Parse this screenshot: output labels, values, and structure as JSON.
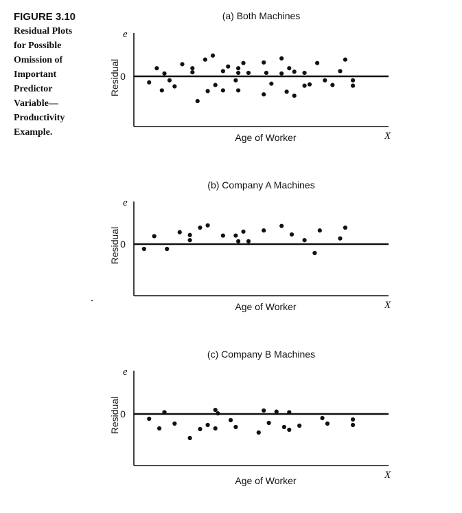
{
  "figure": {
    "label": "FIGURE 3.10",
    "caption": "Residual Plots\nfor Possible\nOmission of\nImportant\nPredictor\nVariable—\nProductivity\nExample."
  },
  "chart_data": [
    {
      "type": "scatter",
      "title": "(a) Both Machines",
      "xlabel": "Age of Worker",
      "ylabel": "Residual",
      "y_axis_symbol": "e",
      "x_axis_symbol": "X",
      "ytick_label": "0",
      "xlim": [
        0,
        100
      ],
      "ylim": [
        -1.5,
        1.5
      ],
      "points": [
        [
          6,
          -0.18
        ],
        [
          9,
          0.28
        ],
        [
          11,
          -0.42
        ],
        [
          12,
          0.1
        ],
        [
          14,
          -0.12
        ],
        [
          16,
          -0.3
        ],
        [
          19,
          0.42
        ],
        [
          23,
          0.28
        ],
        [
          23,
          0.14
        ],
        [
          25,
          -0.74
        ],
        [
          28,
          0.58
        ],
        [
          29,
          -0.44
        ],
        [
          31,
          0.72
        ],
        [
          32,
          -0.26
        ],
        [
          35,
          0.18
        ],
        [
          35,
          -0.42
        ],
        [
          37,
          0.34
        ],
        [
          40,
          -0.12
        ],
        [
          41,
          0.28
        ],
        [
          41,
          0.12
        ],
        [
          41,
          -0.42
        ],
        [
          43,
          0.46
        ],
        [
          45,
          0.12
        ],
        [
          51,
          0.48
        ],
        [
          51,
          -0.54
        ],
        [
          52,
          0.12
        ],
        [
          54,
          -0.22
        ],
        [
          58,
          0.62
        ],
        [
          58,
          0.1
        ],
        [
          60,
          -0.46
        ],
        [
          61,
          0.28
        ],
        [
          63,
          0.16
        ],
        [
          63,
          -0.58
        ],
        [
          67,
          0.12
        ],
        [
          67,
          -0.28
        ],
        [
          69,
          -0.24
        ],
        [
          72,
          0.46
        ],
        [
          75,
          -0.12
        ],
        [
          78,
          -0.26
        ],
        [
          81,
          0.18
        ],
        [
          83,
          0.58
        ],
        [
          86,
          -0.12
        ],
        [
          86,
          -0.28
        ]
      ]
    },
    {
      "type": "scatter",
      "title": "(b) Company A Machines",
      "xlabel": "Age of Worker",
      "ylabel": "Residual",
      "y_axis_symbol": "e",
      "x_axis_symbol": "X",
      "ytick_label": "0",
      "xlim": [
        0,
        100
      ],
      "ylim": [
        -1.5,
        1.5
      ],
      "points": [
        [
          4,
          -0.14
        ],
        [
          8,
          0.28
        ],
        [
          13,
          -0.14
        ],
        [
          18,
          0.42
        ],
        [
          22,
          0.32
        ],
        [
          22,
          0.14
        ],
        [
          26,
          0.58
        ],
        [
          29,
          0.66
        ],
        [
          35,
          0.3
        ],
        [
          40,
          0.3
        ],
        [
          41,
          0.1
        ],
        [
          43,
          0.44
        ],
        [
          45,
          0.1
        ],
        [
          51,
          0.48
        ],
        [
          58,
          0.64
        ],
        [
          62,
          0.34
        ],
        [
          67,
          0.14
        ],
        [
          71,
          -0.26
        ],
        [
          73,
          0.48
        ],
        [
          81,
          0.2
        ],
        [
          83,
          0.58
        ]
      ]
    },
    {
      "type": "scatter",
      "title": "(c) Company B Machines",
      "xlabel": "Age of Worker",
      "ylabel": "Residual",
      "y_axis_symbol": "e",
      "x_axis_symbol": "X",
      "ytick_label": "0",
      "xlim": [
        0,
        100
      ],
      "ylim": [
        -1.5,
        1.5
      ],
      "points": [
        [
          6,
          -0.14
        ],
        [
          10,
          -0.42
        ],
        [
          12,
          0.06
        ],
        [
          16,
          -0.28
        ],
        [
          22,
          -0.7
        ],
        [
          26,
          -0.44
        ],
        [
          29,
          -0.32
        ],
        [
          32,
          -0.42
        ],
        [
          32,
          0.14
        ],
        [
          33,
          0.02
        ],
        [
          38,
          -0.18
        ],
        [
          40,
          -0.38
        ],
        [
          49,
          -0.54
        ],
        [
          51,
          0.12
        ],
        [
          53,
          -0.26
        ],
        [
          56,
          0.08
        ],
        [
          59,
          -0.38
        ],
        [
          61,
          -0.46
        ],
        [
          61,
          0.06
        ],
        [
          65,
          -0.34
        ],
        [
          74,
          -0.12
        ],
        [
          76,
          -0.28
        ],
        [
          86,
          -0.16
        ],
        [
          86,
          -0.32
        ]
      ]
    }
  ]
}
